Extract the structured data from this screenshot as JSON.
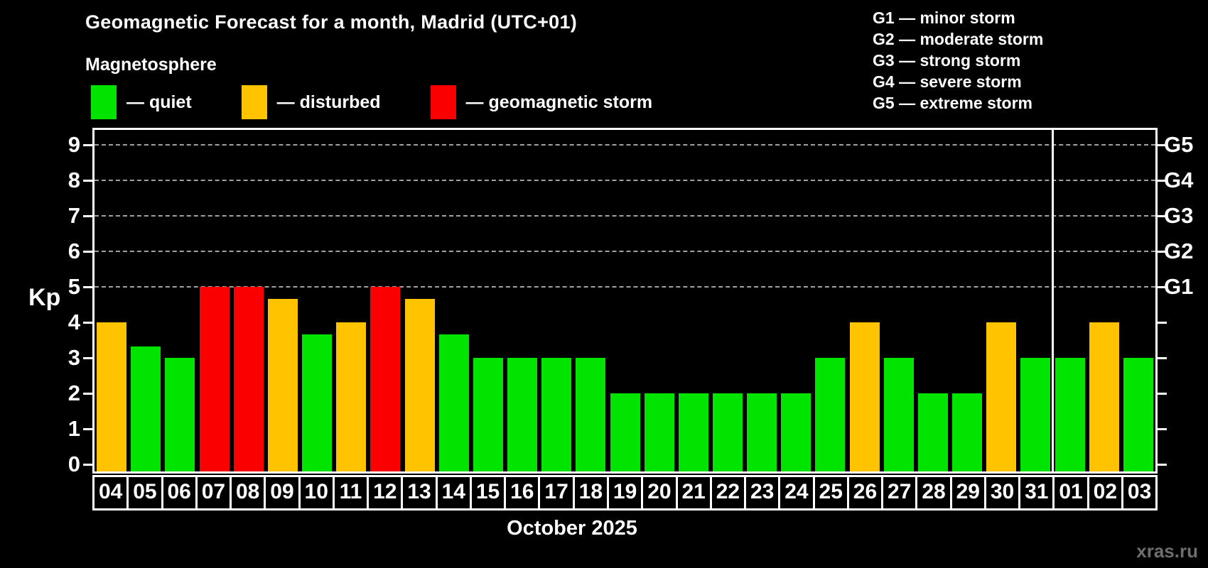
{
  "title": "Geomagnetic Forecast for a month, Madrid (UTC+01)",
  "subtitle": "Magnetosphere",
  "legend": {
    "items": [
      {
        "status": "quiet",
        "label": "— quiet"
      },
      {
        "status": "disturbed",
        "label": "— disturbed"
      },
      {
        "status": "storm",
        "label": "— geomagnetic storm"
      }
    ]
  },
  "storm_scale_legend": [
    "G1 — minor storm",
    "G2 — moderate storm",
    "G3 — strong storm",
    "G4 — severe storm",
    "G5 — extreme storm"
  ],
  "colors": {
    "quiet": "#00e400",
    "disturbed": "#ffc300",
    "storm": "#fb0000",
    "background": "#000000",
    "axis": "#ffffff",
    "gridline": "#a0a0a0",
    "watermark": "#6e6e6e"
  },
  "axis": {
    "kp_label": "Kp",
    "yticks": [
      0,
      1,
      2,
      3,
      4,
      5,
      6,
      7,
      8,
      9
    ],
    "right_labels": [
      {
        "kp": 5,
        "label": "G1"
      },
      {
        "kp": 6,
        "label": "G2"
      },
      {
        "kp": 7,
        "label": "G3"
      },
      {
        "kp": 8,
        "label": "G4"
      },
      {
        "kp": 9,
        "label": "G5"
      }
    ]
  },
  "xlabel": "October 2025",
  "watermark": "xras.ru",
  "chart_data": {
    "type": "bar",
    "title": "Geomagnetic Forecast for a month, Madrid (UTC+01)",
    "xlabel": "October 2025",
    "ylabel": "Kp",
    "ylim": [
      0,
      9.4
    ],
    "gridlines_at": [
      5,
      6,
      7,
      8,
      9
    ],
    "grid_style": "dashed",
    "legend_position": "top",
    "month_separator_after_index": 27,
    "categories": [
      "04",
      "05",
      "06",
      "07",
      "08",
      "09",
      "10",
      "11",
      "12",
      "13",
      "14",
      "15",
      "16",
      "17",
      "18",
      "19",
      "20",
      "21",
      "22",
      "23",
      "24",
      "25",
      "26",
      "27",
      "28",
      "29",
      "30",
      "31",
      "01",
      "02",
      "03"
    ],
    "values": [
      4,
      3.33,
      3,
      5,
      5,
      4.67,
      3.67,
      4,
      5,
      4.67,
      3.67,
      3,
      3,
      3,
      3,
      2,
      2,
      2,
      2,
      2,
      2,
      3,
      4,
      3,
      2,
      2,
      4,
      3,
      3,
      4,
      3
    ],
    "statuses": [
      "disturbed",
      "quiet",
      "quiet",
      "storm",
      "storm",
      "disturbed",
      "quiet",
      "disturbed",
      "storm",
      "disturbed",
      "quiet",
      "quiet",
      "quiet",
      "quiet",
      "quiet",
      "quiet",
      "quiet",
      "quiet",
      "quiet",
      "quiet",
      "quiet",
      "quiet",
      "disturbed",
      "quiet",
      "quiet",
      "quiet",
      "disturbed",
      "quiet",
      "quiet",
      "disturbed",
      "quiet"
    ]
  }
}
